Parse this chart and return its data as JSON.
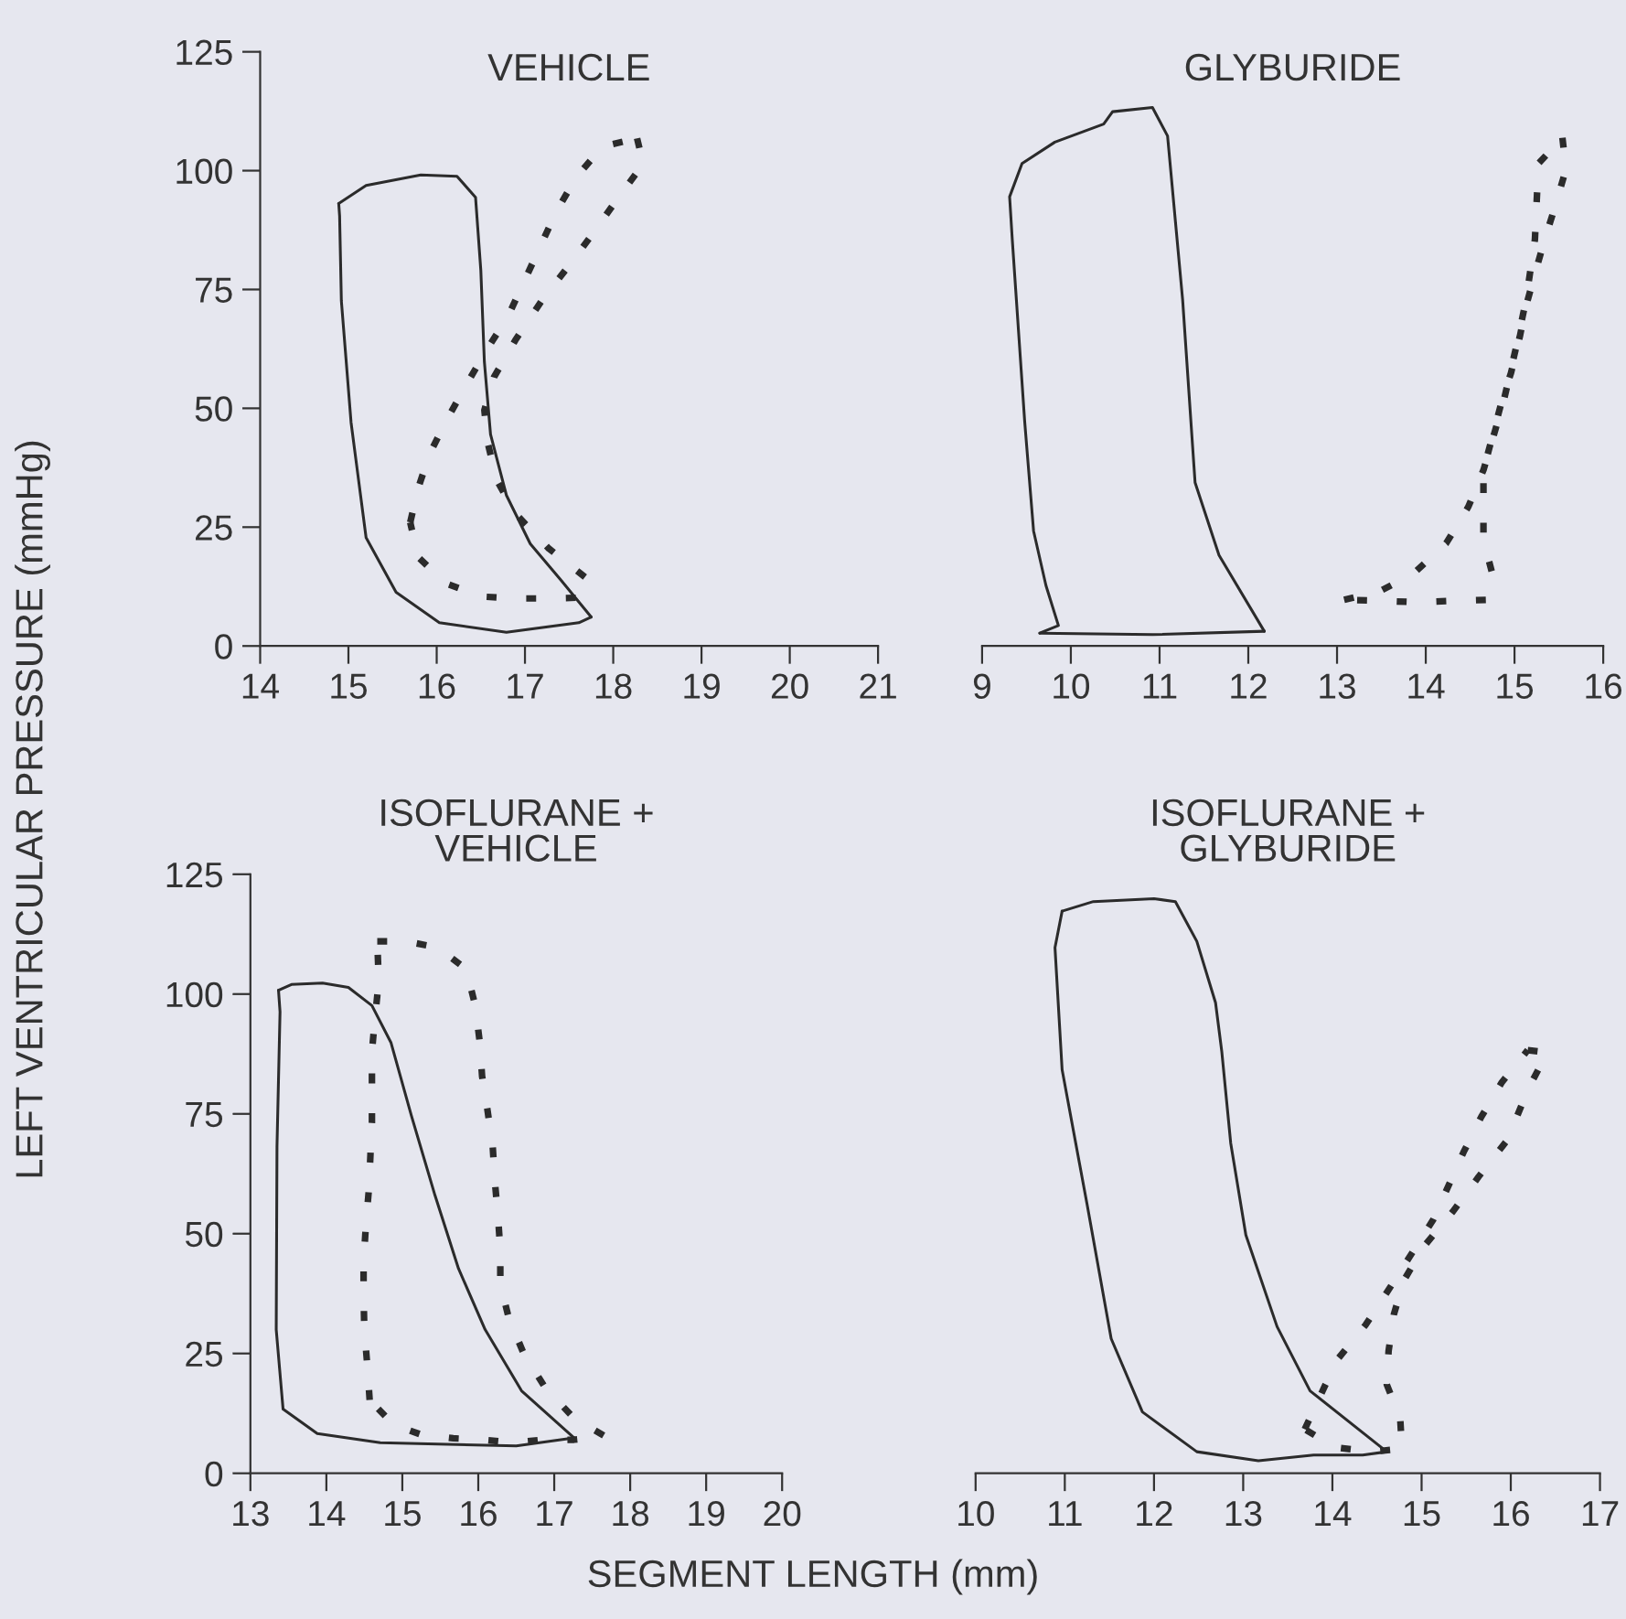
{
  "chart_data": [
    {
      "type": "line",
      "title": "VEHICLE",
      "ylabel": "LEFT VENTRICULAR PRESSURE (mmHg)",
      "xlim": [
        14,
        21
      ],
      "xticks": [
        14,
        15,
        16,
        17,
        18,
        19,
        20,
        21
      ],
      "ylim": [
        0,
        125
      ],
      "yticks": [
        0,
        25,
        50,
        75,
        100,
        125
      ],
      "series": [
        {
          "color": "#2b2b2b",
          "line_style": "solid",
          "x": [
            14.89,
            15.2,
            15.82,
            16.23,
            16.44,
            16.5,
            16.54,
            16.61,
            16.79,
            17.06,
            17.41,
            17.75
          ],
          "values": [
            93.1,
            96.9,
            99.1,
            98.8,
            94.4,
            79,
            59.8,
            44.5,
            31.7,
            21.5,
            13.8,
            6.1
          ]
        },
        {
          "color": "#2b2b2b",
          "line_style": "solid",
          "x": [
            17.75,
            17.61,
            16.79,
            16.03,
            15.54,
            15.2,
            15.03,
            14.92,
            14.9,
            14.89
          ],
          "values": [
            6.1,
            4.9,
            2.9,
            4.9,
            11.3,
            22.8,
            47,
            72.6,
            90.5,
            93.1
          ]
        },
        {
          "color": "#2b2b2b",
          "line_style": "dotted",
          "x": [
            18.27,
            18.34,
            18.06,
            17.79,
            17.51,
            17.2,
            16.89,
            16.65,
            16.54,
            16.58,
            16.68,
            16.89,
            17.27,
            17.68,
            17.68,
            17.28,
            16.89,
            16.51,
            16.1,
            15.79,
            15.7
          ],
          "values": [
            106.8,
            101.4,
            94.4,
            87.3,
            80.3,
            72.9,
            64.3,
            56.6,
            49.6,
            42.6,
            34.9,
            27.9,
            20.5,
            14.5,
            10.2,
            10,
            10,
            10.4,
            13.2,
            18.7,
            26
          ]
        },
        {
          "color": "#2b2b2b",
          "line_style": "dotted",
          "x": [
            15.7,
            15.79,
            15.92,
            16.12,
            16.34,
            16.56,
            16.81,
            16.99,
            17.17,
            17.35,
            17.58,
            17.88,
            18.27
          ],
          "values": [
            26,
            33.2,
            40.4,
            47.8,
            55.1,
            62.1,
            69.4,
            76.7,
            83.9,
            91.2,
            98.6,
            105.1,
            106.8
          ]
        }
      ]
    },
    {
      "type": "line",
      "title": "GLYBURIDE",
      "xlim": [
        9,
        16
      ],
      "xticks": [
        9,
        10,
        11,
        12,
        13,
        14,
        15,
        16
      ],
      "ylim": [
        0,
        125
      ],
      "tick_labels": "x",
      "series": [
        {
          "color": "#2b2b2b",
          "line_style": "solid",
          "x": [
            9.65,
            9.86,
            9.72,
            9.58,
            9.48,
            9.34,
            9.31,
            9.45,
            9.82,
            10.37,
            10.47,
            10.92,
            11.09,
            11.26,
            11.4,
            11.67,
            12.18
          ],
          "values": [
            2.7,
            4.3,
            12.7,
            24.2,
            47.2,
            85.5,
            94.5,
            101.5,
            106,
            109.8,
            112.4,
            113.3,
            107.3,
            72.8,
            34.4,
            19.1,
            3.1
          ]
        },
        {
          "color": "#2b2b2b",
          "line_style": "solid",
          "x": [
            12.18,
            10.92,
            9.65
          ],
          "values": [
            3.1,
            2.4,
            2.7
          ]
        },
        {
          "color": "#2b2b2b",
          "line_style": "dotted",
          "x": [
            15.54,
            15.58,
            15.46,
            15.34,
            15.23,
            15.13,
            15.06,
            14.96,
            14.86,
            14.75,
            14.65,
            14.65,
            14.65,
            14.75,
            14.68,
            14.31,
            13.9,
            13.49,
            13.08
          ],
          "values": [
            106.9,
            100.3,
            92.6,
            85.5,
            78.3,
            71.5,
            65.1,
            57.4,
            51.7,
            44,
            37,
            29.3,
            22.3,
            15.2,
            9.7,
            9.5,
            9.2,
            9.5,
            9.7
          ]
        },
        {
          "color": "#2b2b2b",
          "line_style": "dotted",
          "x": [
            13.08,
            13.49,
            13.86,
            14.23,
            14.48,
            14.65,
            14.77,
            14.88,
            15.03,
            15.13,
            15.23,
            15.27,
            15.54
          ],
          "values": [
            9.7,
            11.6,
            15.2,
            21.6,
            29.3,
            37,
            44.6,
            51.7,
            63.8,
            72.8,
            85.5,
            101.5,
            106.9
          ]
        }
      ]
    },
    {
      "type": "line",
      "title": "ISOFLURANE +\nVEHICLE",
      "xlabel": "SEGMENT LENGTH (mm)",
      "xlim": [
        13,
        20
      ],
      "xticks": [
        13,
        14,
        15,
        16,
        17,
        18,
        19,
        20
      ],
      "ylim": [
        0,
        125
      ],
      "yticks": [
        0,
        25,
        50,
        75,
        100,
        125
      ],
      "series": [
        {
          "color": "#2b2b2b",
          "line_style": "solid",
          "x": [
            13.37,
            13.54,
            13.95,
            14.29,
            14.6,
            14.85,
            15.12,
            15.43,
            15.74,
            16.09,
            16.57,
            17.26
          ],
          "values": [
            100.8,
            102,
            102.3,
            101.4,
            97.6,
            89.9,
            74.6,
            58,
            42.7,
            30,
            17.2,
            7.4
          ]
        },
        {
          "color": "#2b2b2b",
          "line_style": "solid",
          "x": [
            17.26,
            16.5,
            14.71,
            13.88,
            13.43,
            13.34,
            13.35,
            13.39,
            13.37
          ],
          "values": [
            7.4,
            5.7,
            6.4,
            8.3,
            13.4,
            30,
            68.2,
            96.3,
            100.8
          ]
        },
        {
          "color": "#2b2b2b",
          "line_style": "dotted",
          "x": [
            14.67,
            15.05,
            15.47,
            15.84,
            15.96,
            16.02,
            16.05,
            16.12,
            16.19,
            16.22,
            16.26,
            16.29,
            16.29,
            16.4,
            16.6,
            16.88,
            17.26,
            17.67,
            17.26,
            16.84,
            16.46,
            16.05,
            15.67,
            15.26,
            14.88,
            14.57
          ],
          "values": [
            111,
            111,
            109.7,
            105.2,
            97.6,
            89.9,
            82.9,
            75.9,
            68.2,
            60.6,
            53.6,
            46.6,
            39.5,
            32.5,
            24.9,
            17.9,
            11.5,
            7.7,
            7,
            7,
            6.4,
            7,
            7.3,
            8,
            10.2,
            15.3
          ]
        },
        {
          "color": "#2b2b2b",
          "line_style": "dotted",
          "x": [
            14.57,
            14.54,
            14.5,
            14.49,
            14.49,
            14.52,
            14.56,
            14.58,
            14.6,
            14.6,
            14.6,
            14.64,
            14.69,
            14.67
          ],
          "values": [
            15.3,
            22.3,
            30,
            37,
            44,
            51.7,
            59.3,
            66.3,
            73.3,
            81,
            88,
            95,
            102.7,
            111
          ]
        }
      ]
    },
    {
      "type": "line",
      "title": "ISOFLURANE +\nGLYBURIDE",
      "xlim": [
        10,
        17
      ],
      "xticks": [
        10,
        11,
        12,
        13,
        14,
        15,
        16,
        17
      ],
      "ylim": [
        0,
        125
      ],
      "tick_labels": "x",
      "series": [
        {
          "color": "#2b2b2b",
          "line_style": "solid",
          "x": [
            10.97,
            11.32,
            12.0,
            12.24,
            12.48,
            12.69,
            12.76,
            12.86,
            13.03,
            13.38,
            13.75,
            14.61
          ],
          "values": [
            117.3,
            119.3,
            119.9,
            119.3,
            111,
            98.2,
            88,
            68.9,
            49.7,
            30.6,
            17.2,
            4.5
          ]
        },
        {
          "color": "#2b2b2b",
          "line_style": "solid",
          "x": [
            14.61,
            14.34,
            13.79,
            13.17,
            12.48,
            11.87,
            11.52,
            11.25,
            10.97,
            10.89,
            10.97
          ],
          "values": [
            4.5,
            3.8,
            3.8,
            2.6,
            4.5,
            12.8,
            28.1,
            56.1,
            84.2,
            109.7,
            117.3
          ]
        },
        {
          "color": "#2b2b2b",
          "line_style": "dotted",
          "x": [
            16.19,
            16.41,
            16.2,
            15.96,
            15.64,
            15.35,
            15.02,
            14.8,
            14.69,
            14.63,
            14.61,
            14.76,
            14.78,
            14.44,
            14.03,
            13.69
          ],
          "values": [
            88.3,
            87.8,
            80.4,
            69.5,
            61.9,
            54.6,
            47.2,
            40.2,
            33.2,
            25.5,
            18.5,
            11.5,
            5.1,
            4.5,
            5.4,
            9.2
          ]
        },
        {
          "color": "#2b2b2b",
          "line_style": "dotted",
          "x": [
            13.69,
            14.05,
            14.37,
            14.63,
            14.87,
            15.13,
            15.47,
            15.67,
            15.9,
            16.19
          ],
          "values": [
            9.2,
            23.6,
            30.9,
            38.3,
            45.3,
            52.9,
            67,
            74.4,
            81.6,
            88.3
          ]
        }
      ]
    }
  ]
}
